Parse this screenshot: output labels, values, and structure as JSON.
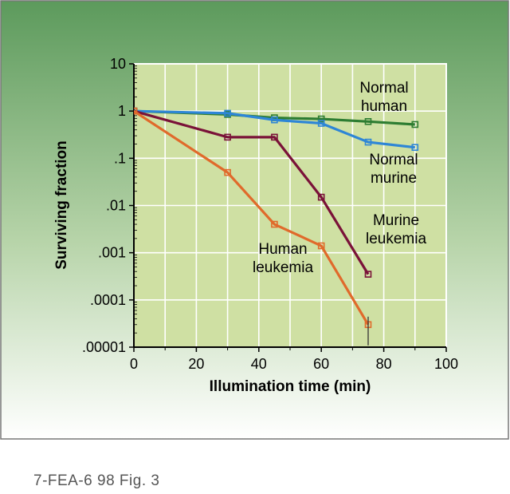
{
  "caption": "7-FEA-6 98 Fig. 3",
  "colors": {
    "frame_gradient_top": "#5c9a5c",
    "frame_gradient_bottom": "#ffffff",
    "plot_background": "#cfe0a3",
    "gridline": "#ffffff",
    "axis": "#000000"
  },
  "chart_data": {
    "type": "line",
    "xlabel": "Illumination time (min)",
    "ylabel": "Surviving fraction",
    "xlim": [
      0,
      100
    ],
    "ylim": [
      1e-05,
      10
    ],
    "yscale": "log",
    "grid": true,
    "x_ticks": [
      0,
      20,
      40,
      60,
      80,
      100
    ],
    "x_tick_labels": [
      "0",
      "20",
      "40",
      "60",
      "80",
      "100"
    ],
    "y_ticks": [
      10,
      1,
      0.1,
      0.01,
      0.001,
      0.0001,
      1e-05
    ],
    "y_tick_labels": [
      "10",
      "1",
      ".1",
      ".01",
      ".001",
      ".0001",
      ".00001"
    ],
    "series": [
      {
        "name": "Normal human",
        "label_lines": [
          "Normal",
          "human"
        ],
        "color": "#2e7d32",
        "x": [
          0,
          30,
          45,
          60,
          75,
          90
        ],
        "y": [
          1,
          0.85,
          0.72,
          0.68,
          0.6,
          0.52
        ]
      },
      {
        "name": "Normal murine",
        "label_lines": [
          "Normal",
          "murine"
        ],
        "color": "#2e86d6",
        "x": [
          0,
          30,
          45,
          60,
          75,
          90
        ],
        "y": [
          1,
          0.9,
          0.65,
          0.55,
          0.22,
          0.17
        ]
      },
      {
        "name": "Murine leukemia",
        "label_lines": [
          "Murine",
          "leukemia"
        ],
        "color": "#7a1238",
        "x": [
          0,
          30,
          45,
          60,
          75
        ],
        "y": [
          1,
          0.28,
          0.28,
          0.015,
          0.00035
        ]
      },
      {
        "name": "Human leukemia",
        "label_lines": [
          "Human",
          "leukemia"
        ],
        "color": "#e06a2b",
        "x": [
          0,
          30,
          45,
          60,
          75
        ],
        "y": [
          1,
          0.05,
          0.004,
          0.0014,
          3e-05
        ]
      }
    ]
  }
}
